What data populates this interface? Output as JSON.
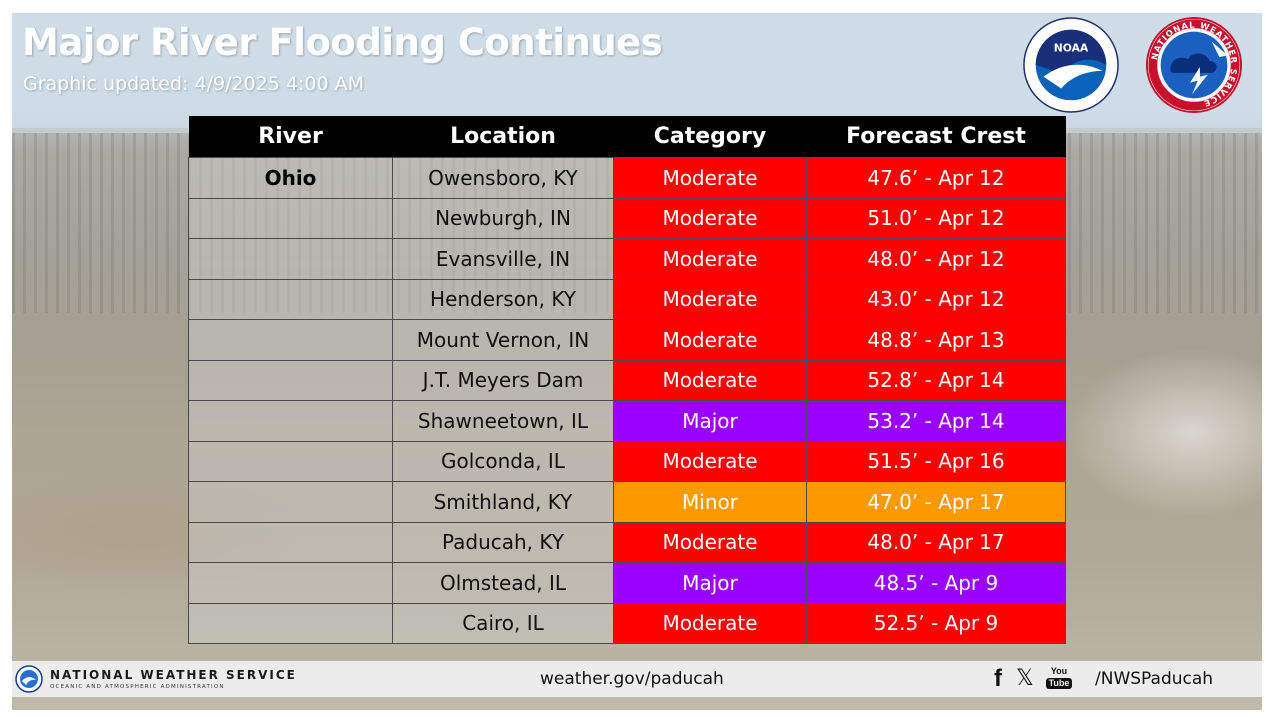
{
  "header": {
    "title": "Major River Flooding Continues",
    "subtitle": "Graphic updated: 4/9/2025 4:00 AM",
    "logos": [
      "noaa-logo",
      "national-weather-service-logo"
    ],
    "noaa_logo_text": "NOAA",
    "nws_logo_text": "NATIONAL WEATHER SERVICE"
  },
  "colors": {
    "moderate": "#ff0000",
    "major": "#9a00ff",
    "minor": "#ff9900",
    "header_bg": "#000000"
  },
  "table": {
    "columns": [
      "River",
      "Location",
      "Category",
      "Forecast Crest"
    ],
    "rows": [
      {
        "river": "Ohio",
        "location": "Owensboro, KY",
        "category": "Moderate",
        "crest": "47.6’ - Apr 12"
      },
      {
        "river": "",
        "location": "Newburgh, IN",
        "category": "Moderate",
        "crest": "51.0’ - Apr 12"
      },
      {
        "river": "",
        "location": "Evansville, IN",
        "category": "Moderate",
        "crest": "48.0’ - Apr 12"
      },
      {
        "river": "",
        "location": "Henderson, KY",
        "category": "Moderate",
        "crest": "43.0’ - Apr 12"
      },
      {
        "river": "",
        "location": "Mount Vernon, IN",
        "category": "Moderate",
        "crest": "48.8’ - Apr 13"
      },
      {
        "river": "",
        "location": "J.T. Meyers Dam",
        "category": "Moderate",
        "crest": "52.8’ - Apr 14"
      },
      {
        "river": "",
        "location": "Shawneetown, IL",
        "category": "Major",
        "crest": "53.2’ - Apr 14"
      },
      {
        "river": "",
        "location": "Golconda, IL",
        "category": "Moderate",
        "crest": "51.5’ - Apr 16"
      },
      {
        "river": "",
        "location": "Smithland, KY",
        "category": "Minor",
        "crest": "47.0’ - Apr 17"
      },
      {
        "river": "",
        "location": "Paducah, KY",
        "category": "Moderate",
        "crest": "48.0’ - Apr 17"
      },
      {
        "river": "",
        "location": "Olmstead, IL",
        "category": "Major",
        "crest": "48.5’ - Apr 9"
      },
      {
        "river": "",
        "location": "Cairo, IL",
        "category": "Moderate",
        "crest": "52.5’ - Apr 9"
      }
    ]
  },
  "footer": {
    "agency_name": "NATIONAL WEATHER SERVICE",
    "agency_sub": "OCEANIC AND ATMOSPHERIC ADMINISTRATION",
    "url": "weather.gov/paducah",
    "social_icons": [
      "facebook-icon",
      "x-icon",
      "youtube-icon"
    ],
    "youtube_top": "You",
    "youtube_bottom": "Tube",
    "social_handle": "/NWSPaducah"
  }
}
